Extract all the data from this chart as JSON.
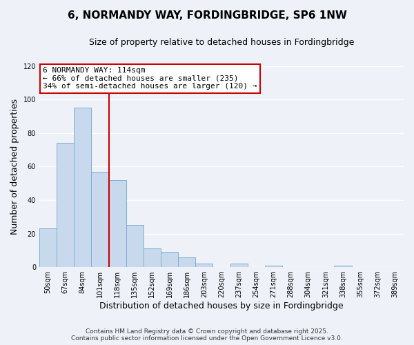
{
  "title": "6, NORMANDY WAY, FORDINGBRIDGE, SP6 1NW",
  "subtitle": "Size of property relative to detached houses in Fordingbridge",
  "xlabel": "Distribution of detached houses by size in Fordingbridge",
  "ylabel": "Number of detached properties",
  "categories": [
    "50sqm",
    "67sqm",
    "84sqm",
    "101sqm",
    "118sqm",
    "135sqm",
    "152sqm",
    "169sqm",
    "186sqm",
    "203sqm",
    "220sqm",
    "237sqm",
    "254sqm",
    "271sqm",
    "288sqm",
    "304sqm",
    "321sqm",
    "338sqm",
    "355sqm",
    "372sqm",
    "389sqm"
  ],
  "values": [
    23,
    74,
    95,
    57,
    52,
    25,
    11,
    9,
    6,
    2,
    0,
    2,
    0,
    1,
    0,
    0,
    0,
    1,
    0,
    0,
    0
  ],
  "bar_color": "#c9d9ed",
  "bar_edge_color": "#7bafd4",
  "reference_line_color": "#cc0000",
  "annotation_title": "6 NORMANDY WAY: 114sqm",
  "annotation_line1": "← 66% of detached houses are smaller (235)",
  "annotation_line2": "34% of semi-detached houses are larger (120) →",
  "annotation_box_color": "#ffffff",
  "annotation_box_edge_color": "#cc0000",
  "ylim": [
    0,
    120
  ],
  "yticks": [
    0,
    20,
    40,
    60,
    80,
    100,
    120
  ],
  "footer_line1": "Contains HM Land Registry data © Crown copyright and database right 2025.",
  "footer_line2": "Contains public sector information licensed under the Open Government Licence v3.0.",
  "bg_color": "#eef2f8",
  "grid_color": "#ffffff",
  "title_fontsize": 11,
  "subtitle_fontsize": 9,
  "axis_label_fontsize": 9,
  "tick_fontsize": 7,
  "annotation_fontsize": 8,
  "footer_fontsize": 6.5
}
